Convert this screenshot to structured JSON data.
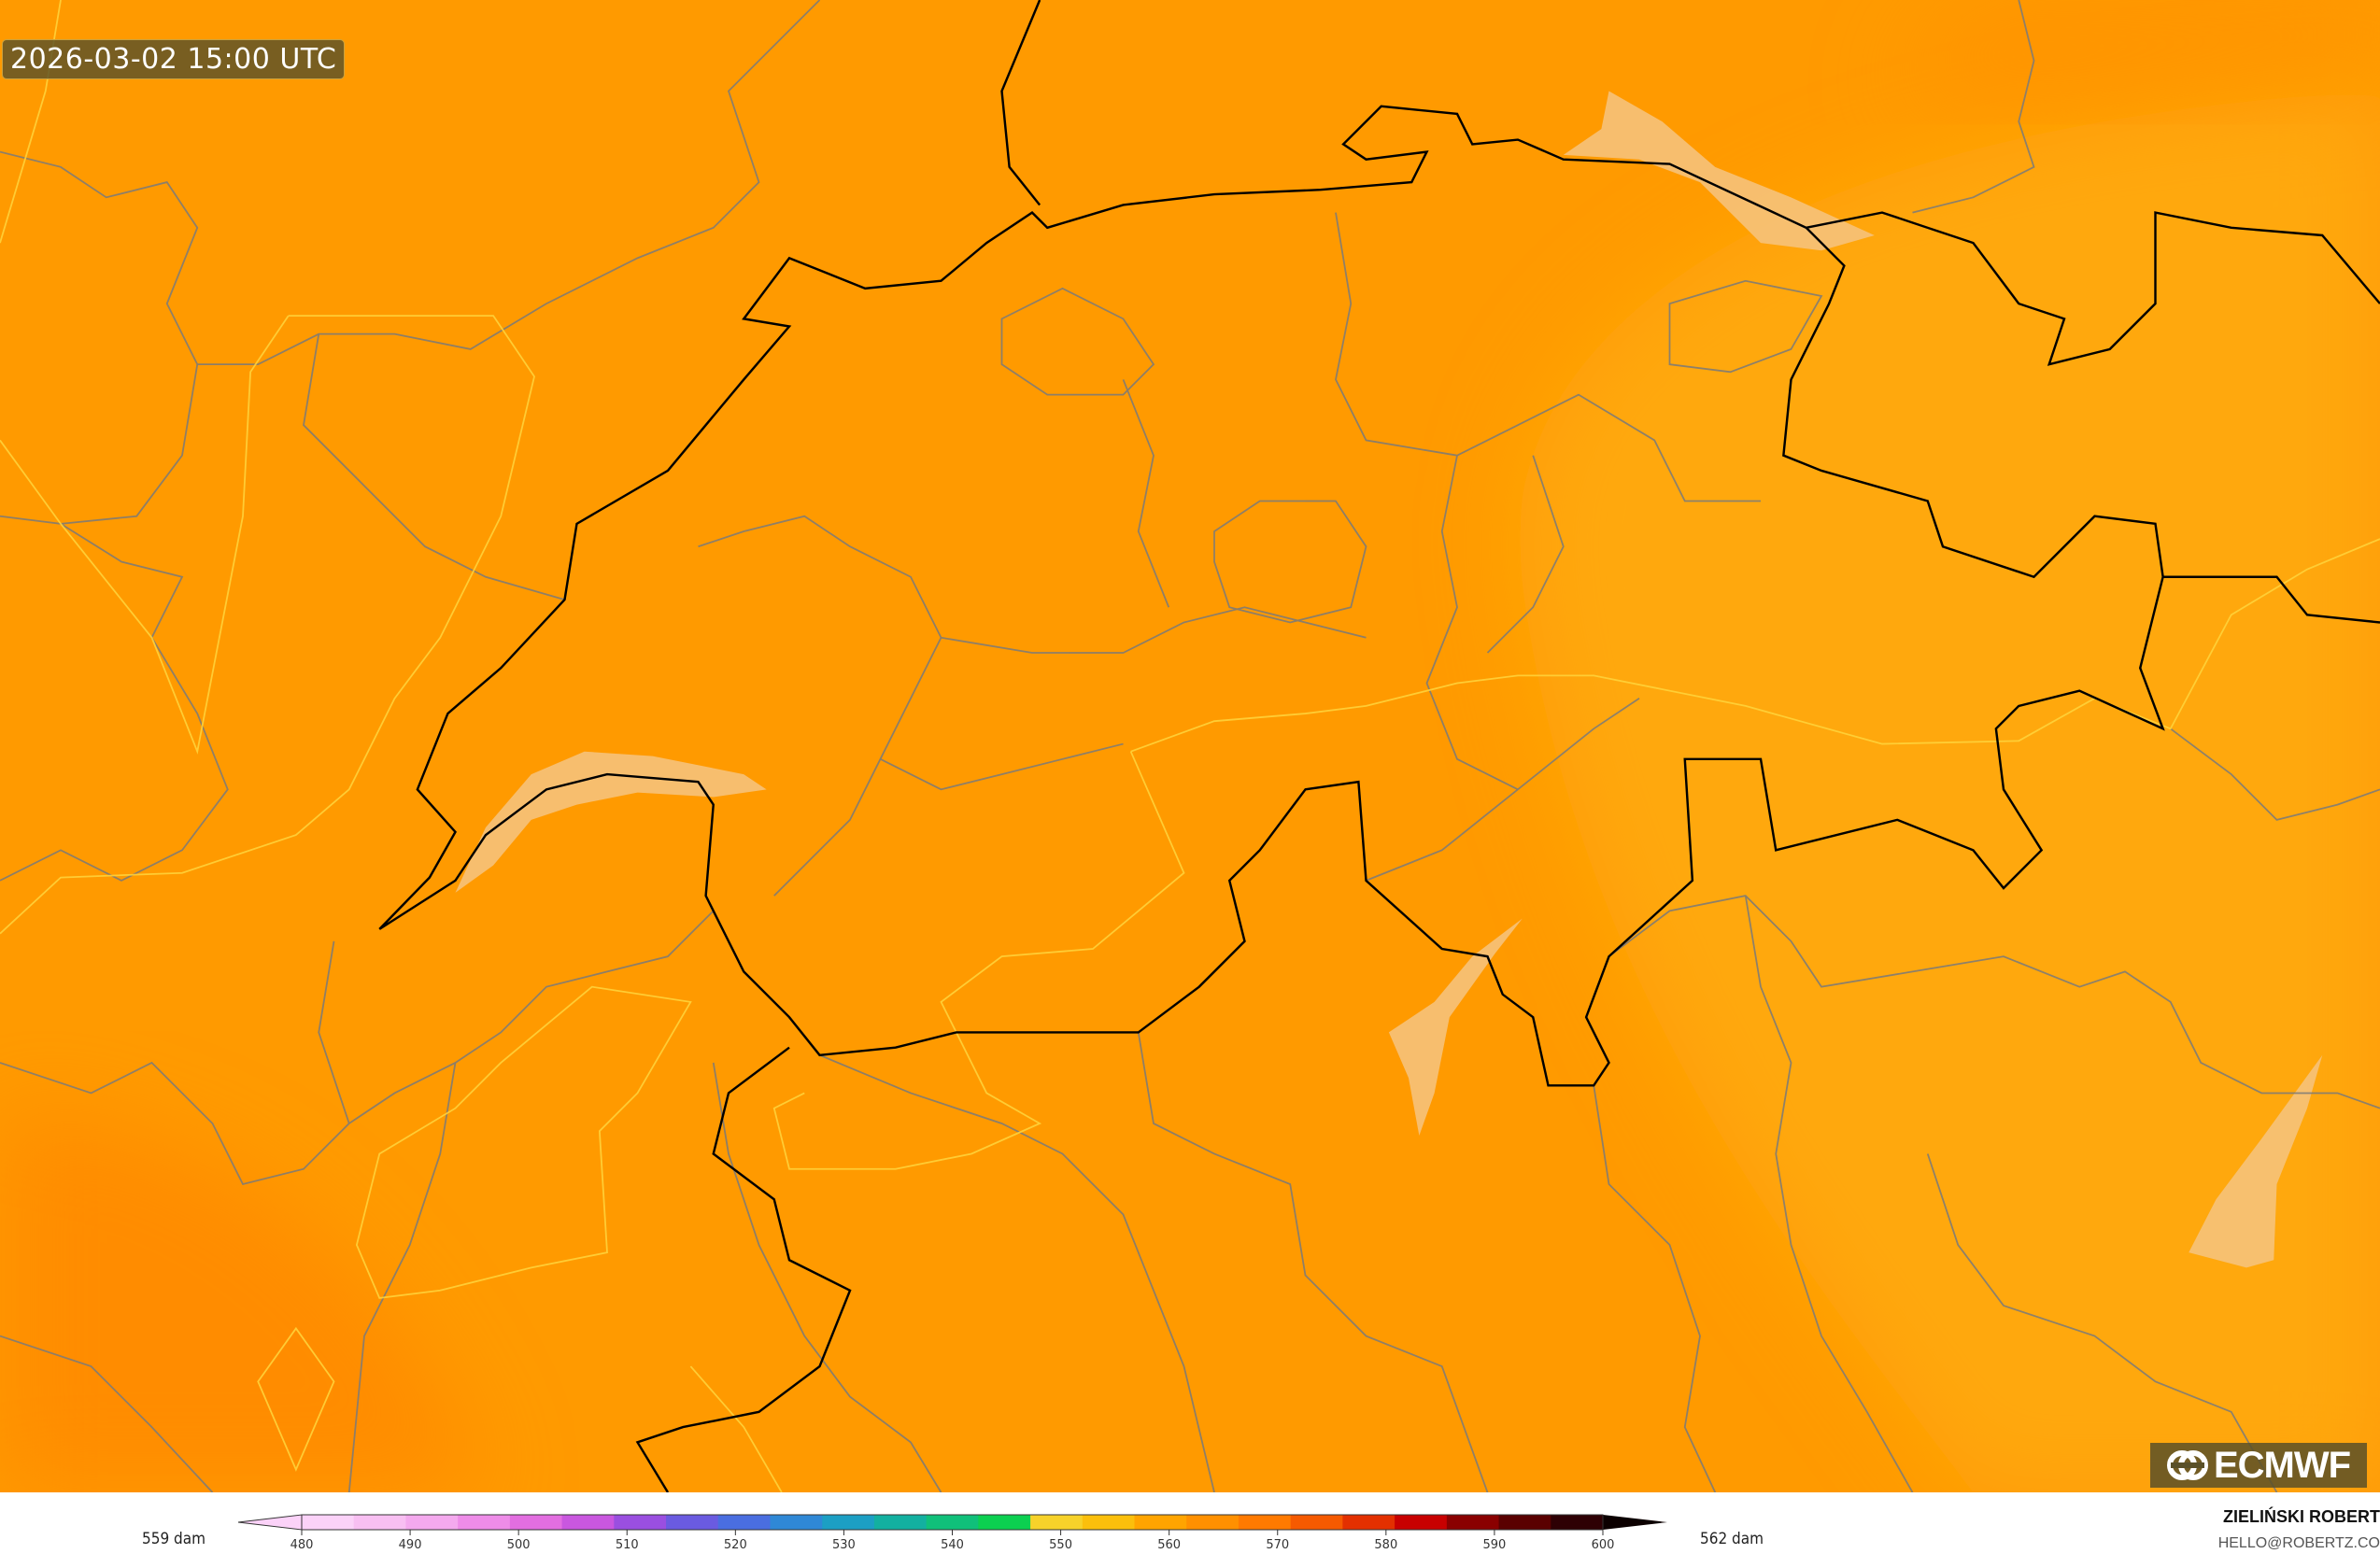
{
  "timestamp": "2026-03-02 15:00 UTC",
  "logo": {
    "text": "ECMWF"
  },
  "colorbar": {
    "unit": "dam",
    "min_label": "559 dam",
    "max_label": "562 dam",
    "ticks": [
      "480",
      "490",
      "500",
      "510",
      "520",
      "530",
      "540",
      "550",
      "560",
      "570",
      "580",
      "590",
      "600"
    ],
    "colors": [
      "#fbd2f8",
      "#f8bff2",
      "#f4a9ee",
      "#ee8ce8",
      "#e26ee0",
      "#c957df",
      "#9a4fe0",
      "#6a5be0",
      "#4a6ee0",
      "#2f88d6",
      "#1c9fc4",
      "#13b0a0",
      "#10c07a",
      "#0cd050",
      "#f7d22a",
      "#fbbf0c",
      "#ffa400",
      "#ff9000",
      "#ff7a00",
      "#f55a00",
      "#e33000",
      "#c80000",
      "#8a0000",
      "#5a0000",
      "#2e0004",
      "#0c0000"
    ]
  },
  "credits": {
    "author": "ZIELIŃSKI ROBERT",
    "email": "HELLO@ROBERTZ.CO"
  },
  "field_colors": {
    "base": "#ff9a00",
    "light": "#ffa709",
    "dark": "#ff8c00",
    "lakes": "#f6c27a",
    "border": "#000000",
    "regions": "#8a8a8a",
    "yellow_lines": "#ffd700"
  }
}
